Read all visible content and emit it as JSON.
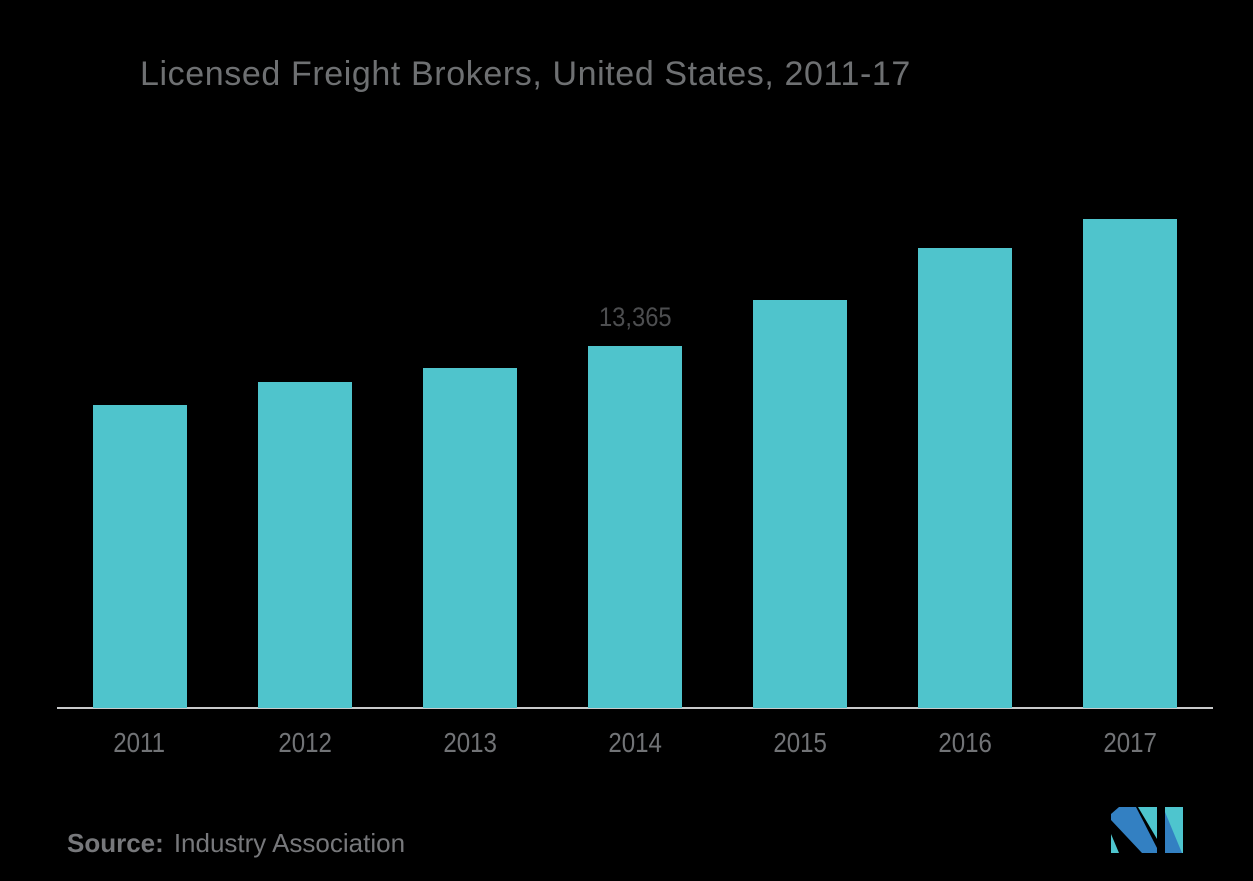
{
  "page": {
    "background_color": "#000000"
  },
  "title": {
    "text": "Licensed Freight Brokers, United States, 2011-17",
    "color": "#6E7072"
  },
  "chart_data": {
    "type": "bar",
    "title": "Licensed Freight Brokers, United States, 2011-17",
    "categories": [
      "2011",
      "2012",
      "2013",
      "2014",
      "2015",
      "2016",
      "2017"
    ],
    "values": [
      11200,
      12050,
      12550,
      13365,
      15050,
      17000,
      18050
    ],
    "data_labels": {
      "2014": "13,365"
    },
    "xlabel": "",
    "ylabel": "",
    "ylim": [
      0,
      18500
    ],
    "y_axis_visible": false,
    "grid": false,
    "legend": false,
    "bar_color": "#4FC4CC",
    "data_label_color": "#4D4E50",
    "tick_label_color": "#717376",
    "axis_line_color": "#C9CACB"
  },
  "source": {
    "label": "Source:",
    "text": "Industry Association",
    "color": "#77787B"
  },
  "logo": {
    "name": "mordor-intelligence-logo",
    "teal": "#4EC5CE",
    "blue": "#3380C2"
  }
}
